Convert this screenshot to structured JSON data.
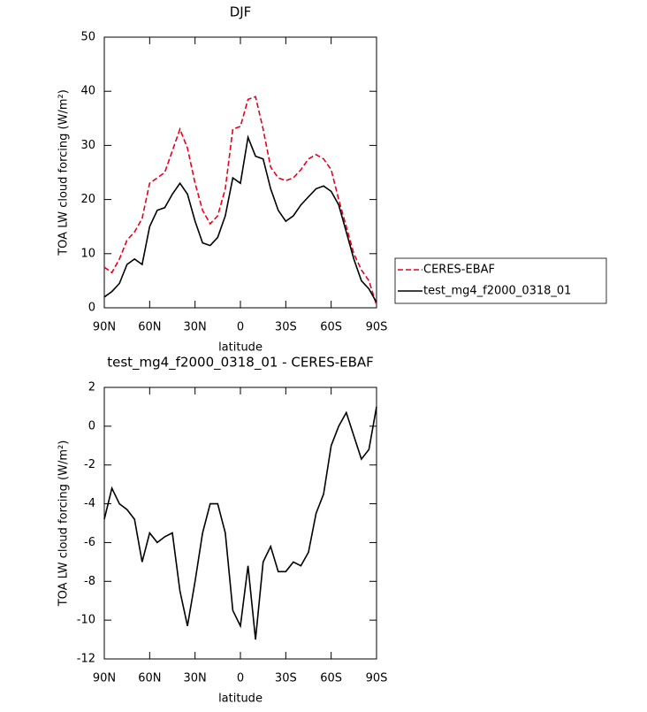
{
  "chart_data": [
    {
      "type": "line",
      "title": "DJF",
      "xlabel": "latitude",
      "ylabel": "TOA LW cloud forcing (W/m²)",
      "x": [
        90,
        85,
        80,
        75,
        70,
        65,
        60,
        55,
        50,
        45,
        40,
        35,
        30,
        25,
        20,
        15,
        10,
        5,
        0,
        -5,
        -10,
        -15,
        -20,
        -25,
        -30,
        -35,
        -40,
        -45,
        -50,
        -55,
        -60,
        -65,
        -70,
        -75,
        -80,
        -85,
        -90
      ],
      "series": [
        {
          "name": "CERES-EBAF",
          "color": "#e8001c",
          "dash": "dashed",
          "values": [
            7.5,
            6.5,
            9,
            12.5,
            14,
            16.5,
            23,
            24,
            25,
            29,
            33,
            29.5,
            23,
            18,
            15.5,
            17,
            22,
            33,
            33.5,
            38.5,
            39,
            33,
            26,
            24,
            23.5,
            24,
            25.5,
            27.5,
            28.3,
            27.5,
            25.5,
            20,
            15,
            10,
            7,
            5,
            0.5
          ]
        },
        {
          "name": "test_mg4_f2000_0318_01",
          "color": "#000000",
          "dash": "solid",
          "values": [
            2,
            3,
            4.5,
            8,
            9,
            8,
            15,
            18,
            18.5,
            21,
            23,
            21,
            16,
            12,
            11.5,
            13,
            17,
            24,
            23,
            31.5,
            28,
            27.5,
            22,
            18,
            16,
            17,
            19,
            20.5,
            22,
            22.5,
            21.5,
            19,
            14,
            9,
            5,
            3.5,
            1
          ]
        }
      ],
      "xlim": [
        90,
        -90
      ],
      "xticks": [
        {
          "value": 90,
          "label": "90N"
        },
        {
          "value": 60,
          "label": "60N"
        },
        {
          "value": 30,
          "label": "30N"
        },
        0,
        {
          "value": -30,
          "label": "30S"
        },
        {
          "value": -60,
          "label": "60S"
        },
        {
          "value": -90,
          "label": "90S"
        }
      ],
      "ylim": [
        0,
        50
      ],
      "yticks": [
        0,
        10,
        20,
        30,
        40,
        50
      ],
      "legend": "right"
    },
    {
      "type": "line",
      "title": "test_mg4_f2000_0318_01 - CERES-EBAF",
      "xlabel": "latitude",
      "ylabel": "TOA LW cloud forcing (W/m²)",
      "x": [
        90,
        85,
        80,
        75,
        70,
        65,
        60,
        55,
        50,
        45,
        40,
        35,
        30,
        25,
        20,
        15,
        10,
        5,
        0,
        -5,
        -10,
        -15,
        -20,
        -25,
        -30,
        -35,
        -40,
        -45,
        -50,
        -55,
        -60,
        -65,
        -70,
        -75,
        -80,
        -85,
        -90
      ],
      "series": [
        {
          "color": "#000000",
          "dash": "solid",
          "values": [
            -4.8,
            -3.2,
            -4,
            -4.3,
            -4.8,
            -7,
            -5.5,
            -6,
            -5.7,
            -5.5,
            -8.5,
            -10.3,
            -8,
            -5.5,
            -4,
            -4,
            -5.5,
            -9.5,
            -10.3,
            -7.2,
            -11,
            -7,
            -6.2,
            -7.5,
            -7.5,
            -7,
            -7.2,
            -6.5,
            -4.5,
            -3.5,
            -1,
            0,
            0.7,
            -0.5,
            -1.7,
            -1.2,
            1
          ]
        }
      ],
      "xlim": [
        90,
        -90
      ],
      "xticks": [
        {
          "value": 90,
          "label": "90N"
        },
        {
          "value": 60,
          "label": "60N"
        },
        {
          "value": 30,
          "label": "30N"
        },
        0,
        {
          "value": -30,
          "label": "30S"
        },
        {
          "value": -60,
          "label": "60S"
        },
        {
          "value": -90,
          "label": "90S"
        }
      ],
      "ylim": [
        -12,
        2
      ],
      "yticks": [
        -12,
        -10,
        -8,
        -6,
        -4,
        -2,
        0,
        2
      ]
    }
  ]
}
